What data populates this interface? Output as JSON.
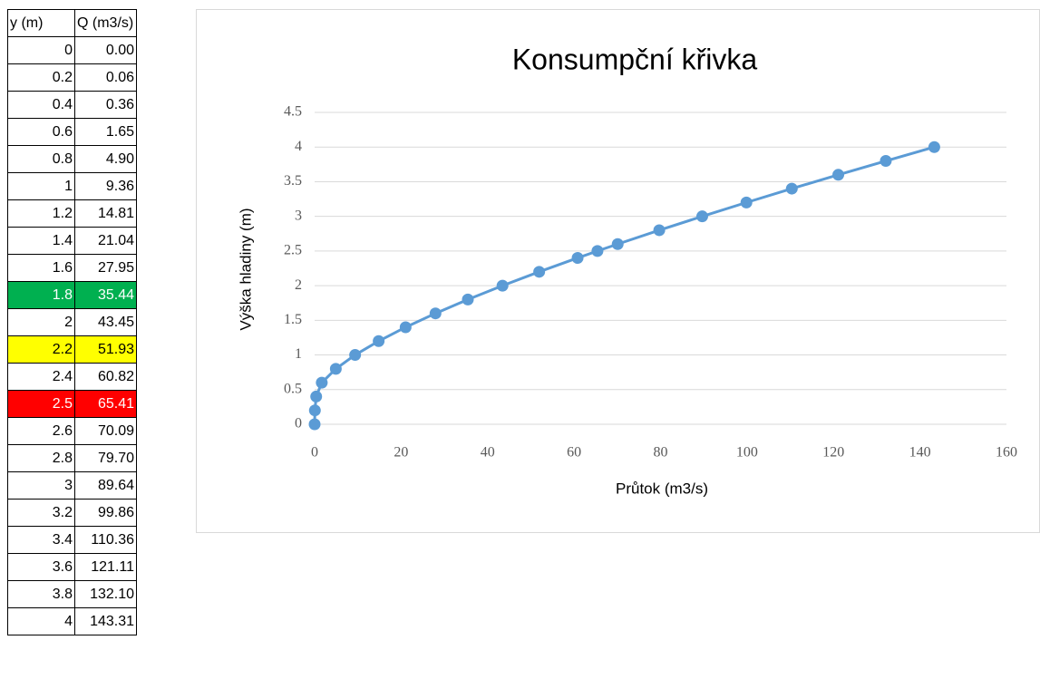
{
  "table": {
    "columns": [
      "y (m)",
      "Q (m3/s)"
    ],
    "rows": [
      [
        "0",
        "0.00"
      ],
      [
        "0.2",
        "0.06"
      ],
      [
        "0.4",
        "0.36"
      ],
      [
        "0.6",
        "1.65"
      ],
      [
        "0.8",
        "4.90"
      ],
      [
        "1",
        "9.36"
      ],
      [
        "1.2",
        "14.81"
      ],
      [
        "1.4",
        "21.04"
      ],
      [
        "1.6",
        "27.95"
      ],
      [
        "1.8",
        "35.44"
      ],
      [
        "2",
        "43.45"
      ],
      [
        "2.2",
        "51.93"
      ],
      [
        "2.4",
        "60.82"
      ],
      [
        "2.5",
        "65.41"
      ],
      [
        "2.6",
        "70.09"
      ],
      [
        "2.8",
        "79.70"
      ],
      [
        "3",
        "89.64"
      ],
      [
        "3.2",
        "99.86"
      ],
      [
        "3.4",
        "110.36"
      ],
      [
        "3.6",
        "121.11"
      ],
      [
        "3.8",
        "132.10"
      ],
      [
        "4",
        "143.31"
      ]
    ],
    "highlights": [
      {
        "row": 9,
        "color": "#00b050",
        "text_color": "#ffffff"
      },
      {
        "row": 11,
        "color": "#ffff00",
        "text_color": "#000000"
      },
      {
        "row": 13,
        "color": "#ff0000",
        "text_color": "#ffffff"
      }
    ]
  },
  "chart_data": {
    "type": "scatter",
    "title": "Konsumpční křivka",
    "x_label": "Průtok (m3/s)",
    "y_label": "Výška hladiny (m)",
    "x": [
      0.0,
      0.06,
      0.36,
      1.65,
      4.9,
      9.36,
      14.81,
      21.04,
      27.95,
      35.44,
      43.45,
      51.93,
      60.82,
      65.41,
      70.09,
      79.7,
      89.64,
      99.86,
      110.36,
      121.11,
      132.1,
      143.31
    ],
    "values": [
      0,
      0.2,
      0.4,
      0.6,
      0.8,
      1,
      1.2,
      1.4,
      1.6,
      1.8,
      2,
      2.2,
      2.4,
      2.5,
      2.6,
      2.8,
      3,
      3.2,
      3.4,
      3.6,
      3.8,
      4
    ],
    "color": "#5b9bd5",
    "line": true,
    "xlim": [
      0,
      160
    ],
    "xticks": [
      0,
      20,
      40,
      60,
      80,
      100,
      120,
      140,
      160
    ],
    "ylim": [
      0,
      4.5
    ],
    "yticks": [
      0,
      0.5,
      1,
      1.5,
      2,
      2.5,
      3,
      3.5,
      4,
      4.5
    ],
    "grid": true
  }
}
